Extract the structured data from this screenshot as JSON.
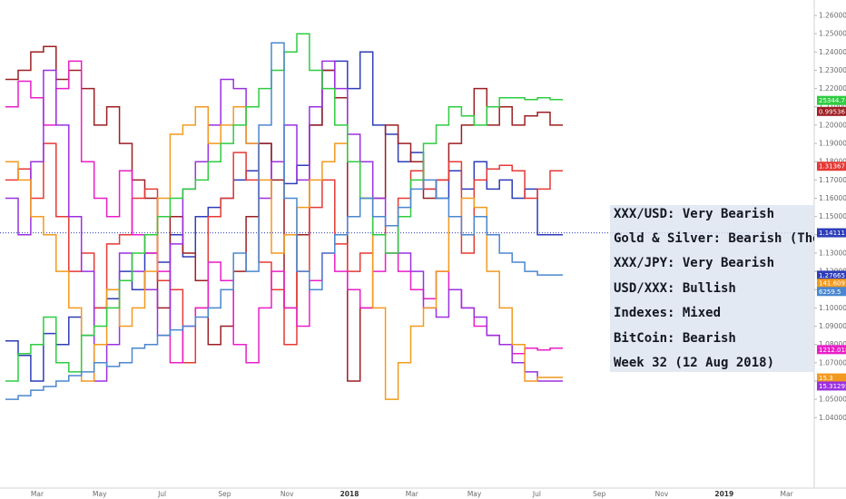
{
  "chart_data": {
    "type": "line",
    "style": "step",
    "x_tick_labels": [
      "Mar",
      "May",
      "Jul",
      "Sep",
      "Nov",
      "2018",
      "Mar",
      "May",
      "Jul",
      "Sep",
      "Nov",
      "2019",
      "Mar"
    ],
    "x_tick_bold": [
      "2018",
      "2019"
    ],
    "y_tick_labels": [
      "1.26000",
      "1.25000",
      "1.24000",
      "1.23000",
      "1.22000",
      "1.21000",
      "1.20000",
      "1.19000",
      "1.18000",
      "1.17000",
      "1.16000",
      "1.15000",
      "1.14000",
      "1.13000",
      "1.12000",
      "1.11000",
      "1.10000",
      "1.09000",
      "1.08000",
      "1.07000",
      "1.06000",
      "1.05000",
      "1.04000"
    ],
    "ylim": [
      1.04,
      1.265
    ],
    "price_line_value": 1.14111,
    "series": [
      {
        "color": "#2e3db8",
        "values": [
          1.082,
          1.074,
          1.06,
          1.086,
          1.08,
          1.095,
          1.085,
          1.1,
          1.105,
          1.12,
          1.11,
          1.13,
          1.125,
          1.14,
          1.128,
          1.15,
          1.155,
          1.16,
          1.17,
          1.175,
          1.19,
          1.18,
          1.168,
          1.178,
          1.2,
          1.23,
          1.235,
          1.22,
          1.24,
          1.2,
          1.195,
          1.18,
          1.185,
          1.165,
          1.16,
          1.175,
          1.165,
          1.18,
          1.165,
          1.17,
          1.16,
          1.165,
          1.14,
          1.14
        ]
      },
      {
        "color": "#9c1f23",
        "values": [
          1.225,
          1.23,
          1.24,
          1.243,
          1.225,
          1.23,
          1.22,
          1.2,
          1.21,
          1.19,
          1.17,
          1.16,
          1.1,
          1.15,
          1.13,
          1.115,
          1.08,
          1.09,
          1.12,
          1.15,
          1.19,
          1.17,
          1.1,
          1.14,
          1.2,
          1.23,
          1.215,
          1.06,
          1.1,
          1.16,
          1.2,
          1.19,
          1.18,
          1.16,
          1.17,
          1.19,
          1.2,
          1.22,
          1.2,
          1.21,
          1.2,
          1.205,
          1.207,
          1.2
        ]
      },
      {
        "color": "#e53935",
        "values": [
          1.17,
          1.176,
          1.16,
          1.19,
          1.15,
          1.12,
          1.13,
          1.1,
          1.135,
          1.14,
          1.16,
          1.165,
          1.115,
          1.11,
          1.07,
          1.1,
          1.15,
          1.16,
          1.185,
          1.17,
          1.125,
          1.11,
          1.08,
          1.12,
          1.155,
          1.17,
          1.135,
          1.12,
          1.13,
          1.14,
          1.145,
          1.16,
          1.175,
          1.165,
          1.17,
          1.18,
          1.13,
          1.17,
          1.176,
          1.178,
          1.175,
          1.16,
          1.165,
          1.175
        ]
      },
      {
        "color": "#e91ec8",
        "values": [
          1.21,
          1.224,
          1.215,
          1.2,
          1.22,
          1.235,
          1.18,
          1.16,
          1.15,
          1.175,
          1.14,
          1.13,
          1.12,
          1.07,
          1.09,
          1.1,
          1.125,
          1.115,
          1.08,
          1.07,
          1.1,
          1.12,
          1.1,
          1.09,
          1.115,
          1.13,
          1.12,
          1.11,
          1.1,
          1.12,
          1.13,
          1.12,
          1.11,
          1.105,
          1.12,
          1.11,
          1.1,
          1.09,
          1.085,
          1.08,
          1.075,
          1.078,
          1.077,
          1.078
        ]
      },
      {
        "color": "#9b30e0",
        "values": [
          1.16,
          1.14,
          1.18,
          1.23,
          1.2,
          1.15,
          1.12,
          1.06,
          1.08,
          1.13,
          1.12,
          1.11,
          1.085,
          1.135,
          1.165,
          1.18,
          1.2,
          1.225,
          1.22,
          1.19,
          1.16,
          1.18,
          1.2,
          1.17,
          1.21,
          1.235,
          1.22,
          1.195,
          1.18,
          1.16,
          1.145,
          1.13,
          1.12,
          1.1,
          1.095,
          1.11,
          1.1,
          1.095,
          1.085,
          1.08,
          1.07,
          1.065,
          1.06,
          1.06
        ]
      },
      {
        "color": "#f29a1f",
        "values": [
          1.18,
          1.17,
          1.15,
          1.14,
          1.12,
          1.1,
          1.06,
          1.08,
          1.11,
          1.09,
          1.1,
          1.12,
          1.16,
          1.195,
          1.2,
          1.21,
          1.19,
          1.2,
          1.21,
          1.19,
          1.17,
          1.13,
          1.14,
          1.155,
          1.17,
          1.18,
          1.19,
          1.18,
          1.16,
          1.1,
          1.05,
          1.07,
          1.09,
          1.1,
          1.12,
          1.15,
          1.16,
          1.155,
          1.12,
          1.1,
          1.08,
          1.06,
          1.062,
          1.062
        ]
      },
      {
        "color": "#2ecc40",
        "values": [
          1.06,
          1.075,
          1.08,
          1.095,
          1.07,
          1.065,
          1.085,
          1.09,
          1.1,
          1.115,
          1.13,
          1.14,
          1.15,
          1.16,
          1.165,
          1.17,
          1.18,
          1.19,
          1.2,
          1.21,
          1.22,
          1.23,
          1.24,
          1.25,
          1.23,
          1.22,
          1.2,
          1.18,
          1.16,
          1.14,
          1.13,
          1.15,
          1.17,
          1.19,
          1.2,
          1.21,
          1.205,
          1.2,
          1.21,
          1.215,
          1.215,
          1.214,
          1.215,
          1.214
        ]
      },
      {
        "color": "#4a87cf",
        "values": [
          1.05,
          1.052,
          1.055,
          1.057,
          1.06,
          1.063,
          1.065,
          1.07,
          1.068,
          1.07,
          1.078,
          1.08,
          1.085,
          1.088,
          1.09,
          1.095,
          1.1,
          1.11,
          1.13,
          1.12,
          1.2,
          1.245,
          1.16,
          1.12,
          1.11,
          1.13,
          1.14,
          1.15,
          1.16,
          1.15,
          1.145,
          1.155,
          1.165,
          1.17,
          1.16,
          1.15,
          1.14,
          1.15,
          1.14,
          1.13,
          1.125,
          1.12,
          1.118,
          1.118
        ]
      }
    ],
    "price_badges": [
      {
        "label": "25344.7",
        "value": 1.2135,
        "color": "#2ecc40"
      },
      {
        "label": "0.99536",
        "value": 1.2075,
        "color": "#9c1f23"
      },
      {
        "label": "1.31367",
        "value": 1.1775,
        "color": "#e53935"
      },
      {
        "label": "1.14111",
        "value": 1.14111,
        "color": "#2e3db8"
      },
      {
        "label": "1.27665",
        "value": 1.1179,
        "color": "#2e3db8"
      },
      {
        "label": "141.609",
        "value": 1.1135,
        "color": "#f29a1f"
      },
      {
        "label": "6259.5",
        "value": 1.109,
        "color": "#4a87cf"
      },
      {
        "label": "1212.018",
        "value": 1.0772,
        "color": "#e91ec8"
      },
      {
        "label": "15.3",
        "value": 1.0617,
        "color": "#f29a1f"
      },
      {
        "label": "15.31295",
        "value": 1.0573,
        "color": "#9b30e0"
      }
    ]
  },
  "summary": {
    "lines": [
      "XXX/USD: Very Bearish",
      "Gold & Silver: Bearish (The dee",
      "XXX/JPY: Very Bearish",
      "USD/XXX: Bullish",
      "Indexes: Mixed",
      "BitCoin: Bearish",
      "Week 32 (12 Aug 2018)"
    ]
  }
}
